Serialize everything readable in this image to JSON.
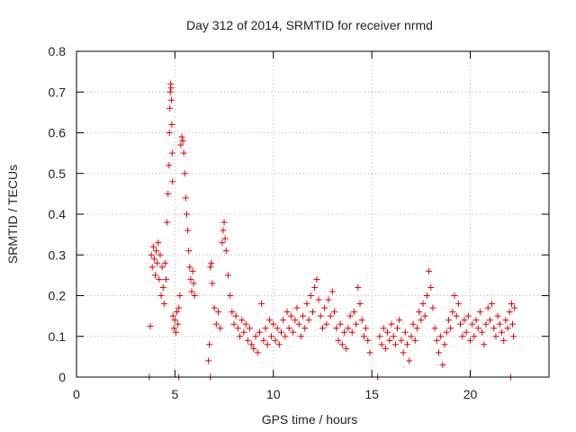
{
  "chart_data": {
    "type": "scatter",
    "title": "Day 312 of 2014, SRMTID for receiver nrmd",
    "xlabel": "GPS time / hours",
    "ylabel": "SRMTID / TECUs",
    "xlim": [
      0,
      24
    ],
    "ylim": [
      0,
      0.8
    ],
    "xticks": [
      0,
      5,
      10,
      15,
      20
    ],
    "yticks": [
      0,
      0.1,
      0.2,
      0.3,
      0.4,
      0.5,
      0.6,
      0.7,
      0.8
    ],
    "xtick_labels": [
      "0",
      "5",
      "10",
      "15",
      "20"
    ],
    "ytick_labels": [
      "0",
      "0.1",
      "0.2",
      "0.3",
      "0.4",
      "0.5",
      "0.6",
      "0.7",
      "0.8"
    ],
    "grid": true,
    "marker": "+",
    "color": "#e00000",
    "series": [
      {
        "name": "SRMTID",
        "points": [
          [
            3.7,
            0.0
          ],
          [
            3.75,
            0.125
          ],
          [
            3.8,
            0.3
          ],
          [
            3.85,
            0.27
          ],
          [
            3.9,
            0.32
          ],
          [
            3.95,
            0.29
          ],
          [
            4.0,
            0.25
          ],
          [
            4.05,
            0.31
          ],
          [
            4.1,
            0.28
          ],
          [
            4.15,
            0.33
          ],
          [
            4.2,
            0.24
          ],
          [
            4.25,
            0.3
          ],
          [
            4.3,
            0.2
          ],
          [
            4.35,
            0.27
          ],
          [
            4.4,
            0.22
          ],
          [
            4.45,
            0.18
          ],
          [
            4.5,
            0.28
          ],
          [
            4.55,
            0.24
          ],
          [
            4.6,
            0.38
          ],
          [
            4.65,
            0.45
          ],
          [
            4.7,
            0.52
          ],
          [
            4.72,
            0.6
          ],
          [
            4.74,
            0.66
          ],
          [
            4.76,
            0.7
          ],
          [
            4.78,
            0.72
          ],
          [
            4.8,
            0.71
          ],
          [
            4.82,
            0.68
          ],
          [
            4.84,
            0.62
          ],
          [
            4.86,
            0.55
          ],
          [
            4.88,
            0.48
          ],
          [
            4.9,
            0.15
          ],
          [
            4.95,
            0.12
          ],
          [
            5.0,
            0.14
          ],
          [
            5.05,
            0.11
          ],
          [
            5.1,
            0.16
          ],
          [
            5.15,
            0.13
          ],
          [
            5.2,
            0.17
          ],
          [
            5.25,
            0.2
          ],
          [
            5.3,
            0.57
          ],
          [
            5.35,
            0.59
          ],
          [
            5.4,
            0.58
          ],
          [
            5.45,
            0.55
          ],
          [
            5.5,
            0.5
          ],
          [
            5.55,
            0.44
          ],
          [
            5.6,
            0.4
          ],
          [
            5.65,
            0.36
          ],
          [
            5.7,
            0.31
          ],
          [
            5.75,
            0.27
          ],
          [
            5.8,
            0.24
          ],
          [
            5.85,
            0.21
          ],
          [
            5.9,
            0.26
          ],
          [
            5.95,
            0.23
          ],
          [
            6.0,
            0.2
          ],
          [
            6.7,
            0.04
          ],
          [
            6.75,
            0.08
          ],
          [
            6.8,
            0.27
          ],
          [
            6.85,
            0.28
          ],
          [
            6.9,
            0.23
          ],
          [
            7.0,
            0.17
          ],
          [
            7.1,
            0.13
          ],
          [
            7.2,
            0.16
          ],
          [
            7.3,
            0.12
          ],
          [
            7.4,
            0.33
          ],
          [
            7.45,
            0.36
          ],
          [
            7.5,
            0.38
          ],
          [
            7.55,
            0.34
          ],
          [
            7.6,
            0.31
          ],
          [
            7.7,
            0.25
          ],
          [
            7.8,
            0.2
          ],
          [
            7.9,
            0.16
          ],
          [
            8.0,
            0.13
          ],
          [
            8.1,
            0.15
          ],
          [
            8.2,
            0.12
          ],
          [
            8.3,
            0.1
          ],
          [
            8.4,
            0.14
          ],
          [
            8.5,
            0.11
          ],
          [
            8.6,
            0.13
          ],
          [
            8.7,
            0.09
          ],
          [
            8.8,
            0.12
          ],
          [
            8.9,
            0.08
          ],
          [
            9.0,
            0.07
          ],
          [
            9.1,
            0.1
          ],
          [
            9.2,
            0.06
          ],
          [
            9.3,
            0.11
          ],
          [
            9.4,
            0.18
          ],
          [
            9.5,
            0.09
          ],
          [
            9.6,
            0.12
          ],
          [
            9.7,
            0.08
          ],
          [
            9.8,
            0.14
          ],
          [
            9.9,
            0.1
          ],
          [
            10.0,
            0.13
          ],
          [
            10.1,
            0.09
          ],
          [
            10.2,
            0.12
          ],
          [
            10.3,
            0.08
          ],
          [
            10.4,
            0.11
          ],
          [
            10.5,
            0.14
          ],
          [
            10.6,
            0.1
          ],
          [
            10.7,
            0.16
          ],
          [
            10.8,
            0.12
          ],
          [
            10.9,
            0.15
          ],
          [
            11.0,
            0.11
          ],
          [
            11.1,
            0.14
          ],
          [
            11.2,
            0.17
          ],
          [
            11.3,
            0.13
          ],
          [
            11.4,
            0.1
          ],
          [
            11.5,
            0.15
          ],
          [
            11.6,
            0.12
          ],
          [
            11.7,
            0.18
          ],
          [
            11.8,
            0.14
          ],
          [
            11.9,
            0.2
          ],
          [
            12.0,
            0.16
          ],
          [
            12.1,
            0.22
          ],
          [
            12.2,
            0.24
          ],
          [
            12.3,
            0.19
          ],
          [
            12.4,
            0.15
          ],
          [
            12.5,
            0.12
          ],
          [
            12.6,
            0.17
          ],
          [
            12.7,
            0.13
          ],
          [
            12.8,
            0.19
          ],
          [
            12.9,
            0.15
          ],
          [
            13.0,
            0.21
          ],
          [
            13.1,
            0.16
          ],
          [
            13.2,
            0.12
          ],
          [
            13.3,
            0.09
          ],
          [
            13.4,
            0.13
          ],
          [
            13.5,
            0.08
          ],
          [
            13.6,
            0.11
          ],
          [
            13.7,
            0.07
          ],
          [
            13.8,
            0.12
          ],
          [
            13.9,
            0.15
          ],
          [
            14.0,
            0.11
          ],
          [
            14.1,
            0.16
          ],
          [
            14.2,
            0.13
          ],
          [
            14.3,
            0.22
          ],
          [
            14.4,
            0.18
          ],
          [
            14.5,
            0.14
          ],
          [
            14.6,
            0.1
          ],
          [
            14.7,
            0.12
          ],
          [
            14.8,
            0.09
          ],
          [
            14.9,
            0.06
          ],
          [
            15.3,
            0.0
          ],
          [
            15.4,
            0.1
          ],
          [
            15.5,
            0.08
          ],
          [
            15.6,
            0.12
          ],
          [
            15.7,
            0.07
          ],
          [
            15.8,
            0.11
          ],
          [
            15.9,
            0.09
          ],
          [
            16.0,
            0.13
          ],
          [
            16.1,
            0.1
          ],
          [
            16.2,
            0.08
          ],
          [
            16.3,
            0.12
          ],
          [
            16.4,
            0.14
          ],
          [
            16.5,
            0.09
          ],
          [
            16.6,
            0.06
          ],
          [
            16.7,
            0.11
          ],
          [
            16.8,
            0.08
          ],
          [
            16.9,
            0.04
          ],
          [
            17.0,
            0.1
          ],
          [
            17.1,
            0.13
          ],
          [
            17.2,
            0.09
          ],
          [
            17.3,
            0.12
          ],
          [
            17.4,
            0.16
          ],
          [
            17.5,
            0.14
          ],
          [
            17.6,
            0.18
          ],
          [
            17.7,
            0.15
          ],
          [
            17.8,
            0.2
          ],
          [
            17.9,
            0.26
          ],
          [
            18.0,
            0.22
          ],
          [
            18.1,
            0.17
          ],
          [
            18.2,
            0.12
          ],
          [
            18.3,
            0.09
          ],
          [
            18.4,
            0.06
          ],
          [
            18.5,
            0.1
          ],
          [
            18.6,
            0.03
          ],
          [
            18.7,
            0.08
          ],
          [
            18.8,
            0.11
          ],
          [
            18.9,
            0.14
          ],
          [
            19.0,
            0.12
          ],
          [
            19.1,
            0.16
          ],
          [
            19.2,
            0.2
          ],
          [
            19.3,
            0.15
          ],
          [
            19.4,
            0.18
          ],
          [
            19.5,
            0.13
          ],
          [
            19.6,
            0.1
          ],
          [
            19.7,
            0.14
          ],
          [
            19.8,
            0.11
          ],
          [
            19.9,
            0.15
          ],
          [
            20.0,
            0.09
          ],
          [
            20.1,
            0.13
          ],
          [
            20.2,
            0.1
          ],
          [
            20.3,
            0.14
          ],
          [
            20.4,
            0.12
          ],
          [
            20.5,
            0.16
          ],
          [
            20.6,
            0.11
          ],
          [
            20.7,
            0.08
          ],
          [
            20.8,
            0.13
          ],
          [
            20.9,
            0.17
          ],
          [
            21.0,
            0.14
          ],
          [
            21.1,
            0.18
          ],
          [
            21.2,
            0.12
          ],
          [
            21.3,
            0.1
          ],
          [
            21.4,
            0.15
          ],
          [
            21.5,
            0.13
          ],
          [
            21.6,
            0.11
          ],
          [
            21.7,
            0.09
          ],
          [
            21.8,
            0.14
          ],
          [
            21.9,
            0.12
          ],
          [
            22.0,
            0.16
          ],
          [
            22.05,
            0.0
          ],
          [
            22.1,
            0.18
          ],
          [
            22.15,
            0.13
          ],
          [
            22.2,
            0.1
          ],
          [
            22.25,
            0.17
          ],
          [
            5.2,
            0.0
          ],
          [
            6.8,
            0.0
          ]
        ]
      }
    ]
  }
}
